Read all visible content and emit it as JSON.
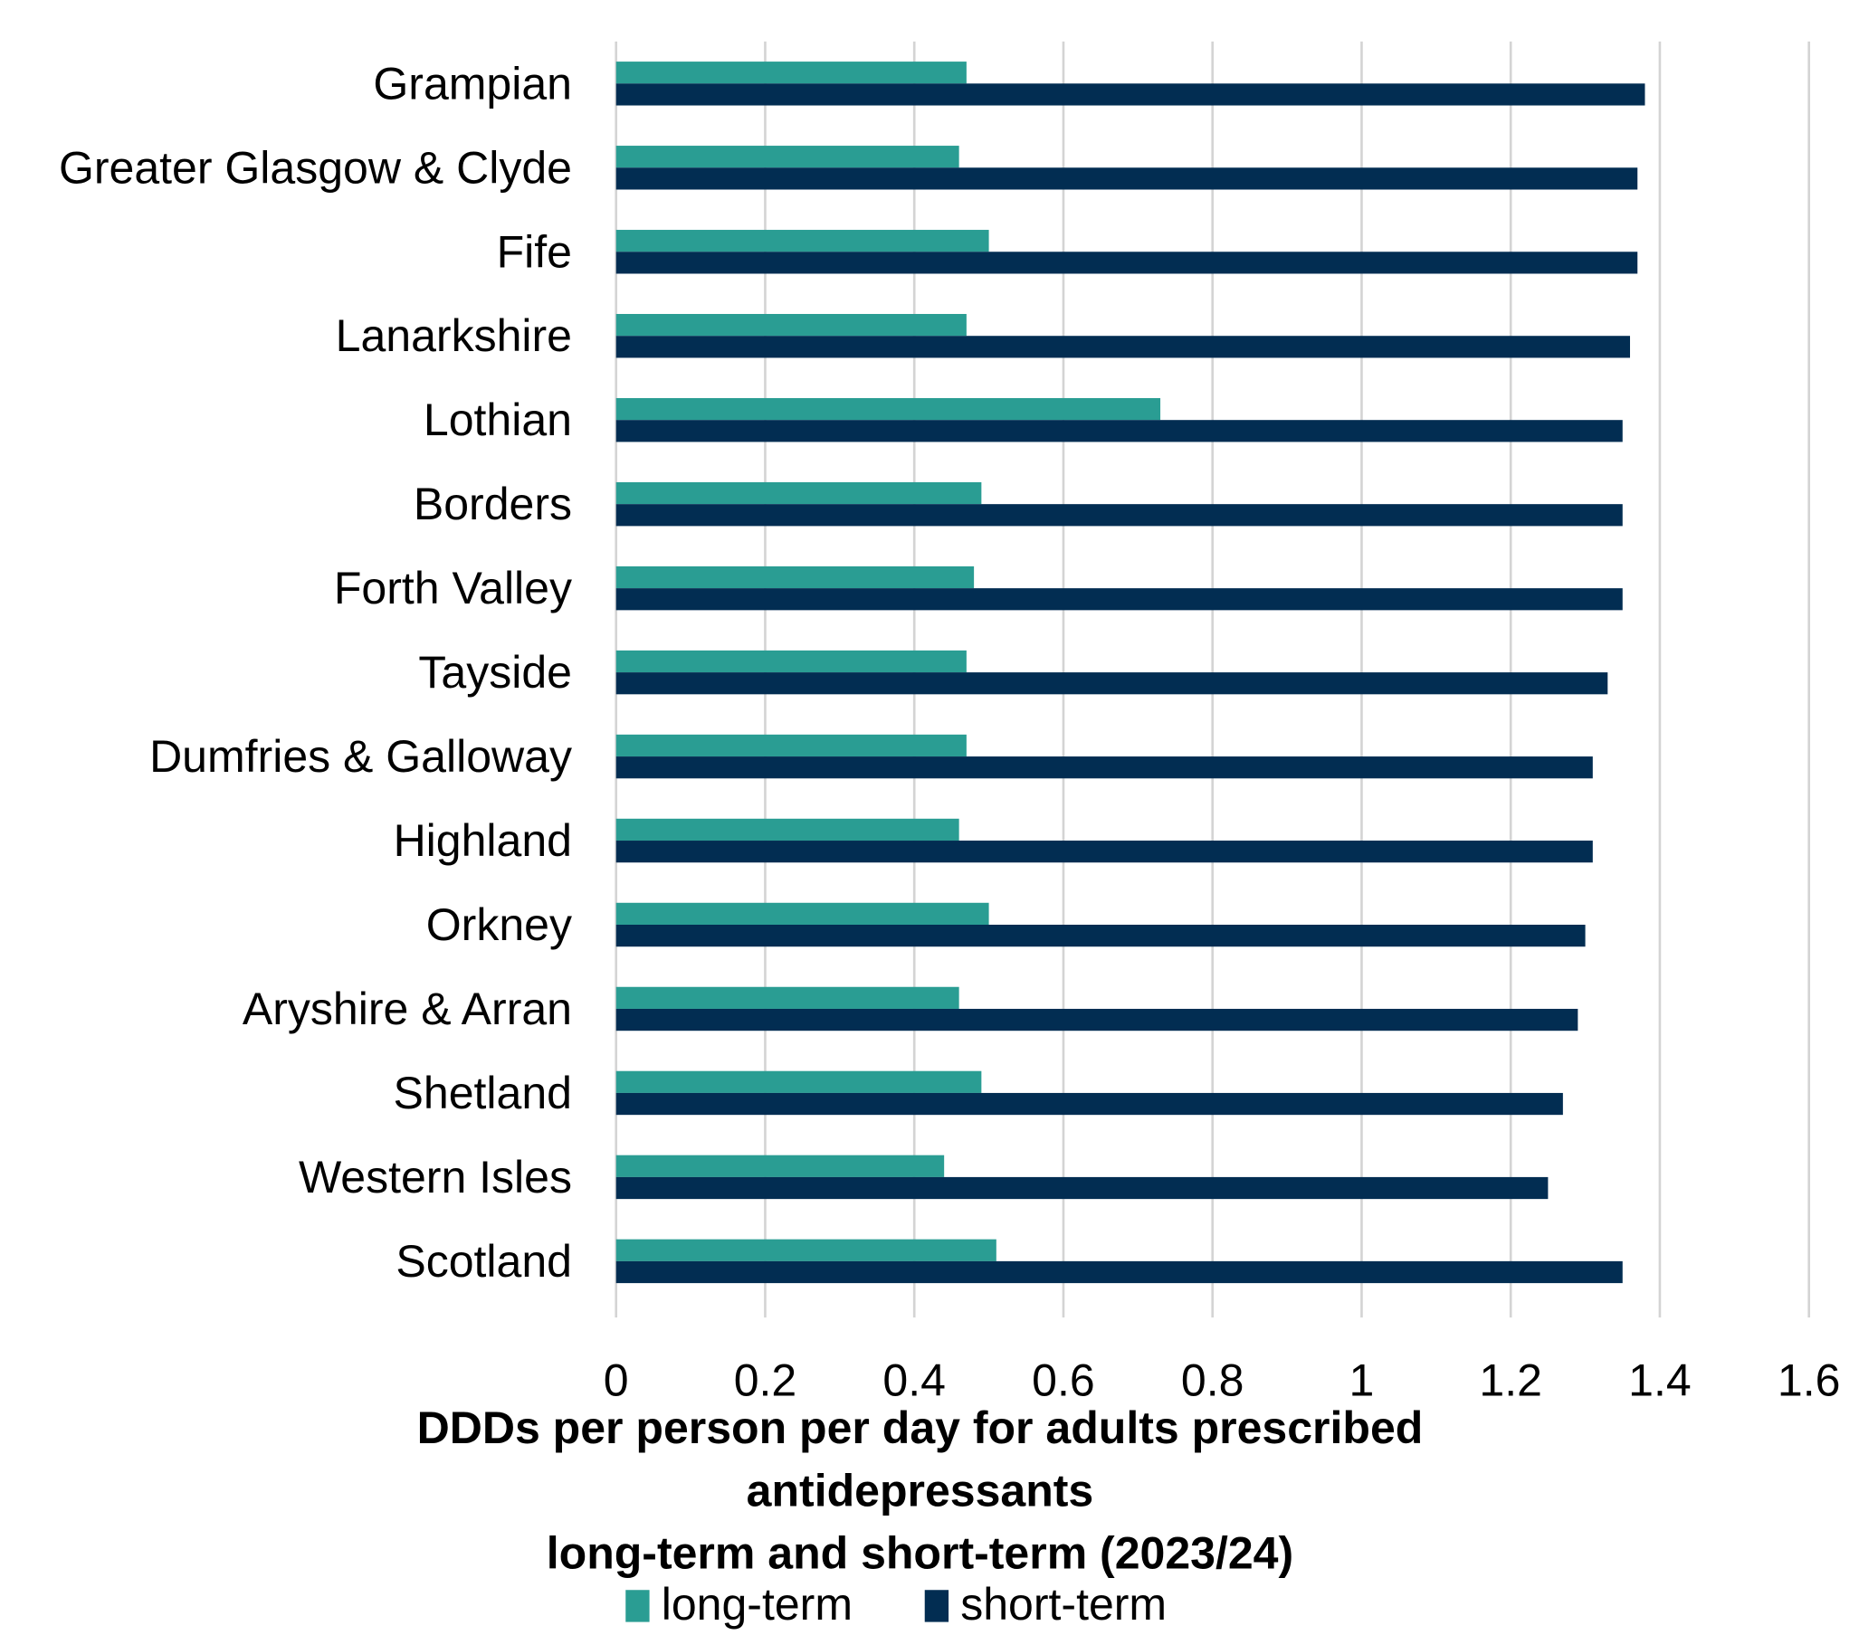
{
  "chart_data": {
    "type": "bar",
    "orientation": "horizontal",
    "title_lines": [
      "DDDs per person per day for adults prescribed",
      "antidepressants",
      "long-term and short-term (2023/24)"
    ],
    "xlabel": "",
    "ylabel": "",
    "xlim": [
      0,
      1.6
    ],
    "xticks": [
      "0",
      "0.2",
      "0.4",
      "0.6",
      "0.8",
      "1",
      "1.2",
      "1.4",
      "1.6"
    ],
    "grid": "vertical",
    "legend_position": "bottom",
    "categories": [
      "Grampian",
      "Greater Glasgow & Clyde",
      "Fife",
      "Lanarkshire",
      "Lothian",
      "Borders",
      "Forth Valley",
      "Tayside",
      "Dumfries & Galloway",
      "Highland",
      "Orkney",
      "Aryshire & Arran",
      "Shetland",
      "Western Isles",
      "Scotland"
    ],
    "series": [
      {
        "name": "long-term",
        "color": "#2a9d93",
        "values": [
          0.47,
          0.46,
          0.5,
          0.47,
          0.73,
          0.49,
          0.48,
          0.47,
          0.47,
          0.46,
          0.5,
          0.46,
          0.49,
          0.44,
          0.51
        ]
      },
      {
        "name": "short-term",
        "color": "#022d52",
        "values": [
          1.38,
          1.37,
          1.37,
          1.36,
          1.35,
          1.35,
          1.35,
          1.33,
          1.31,
          1.31,
          1.3,
          1.29,
          1.27,
          1.25,
          1.35
        ]
      }
    ]
  }
}
